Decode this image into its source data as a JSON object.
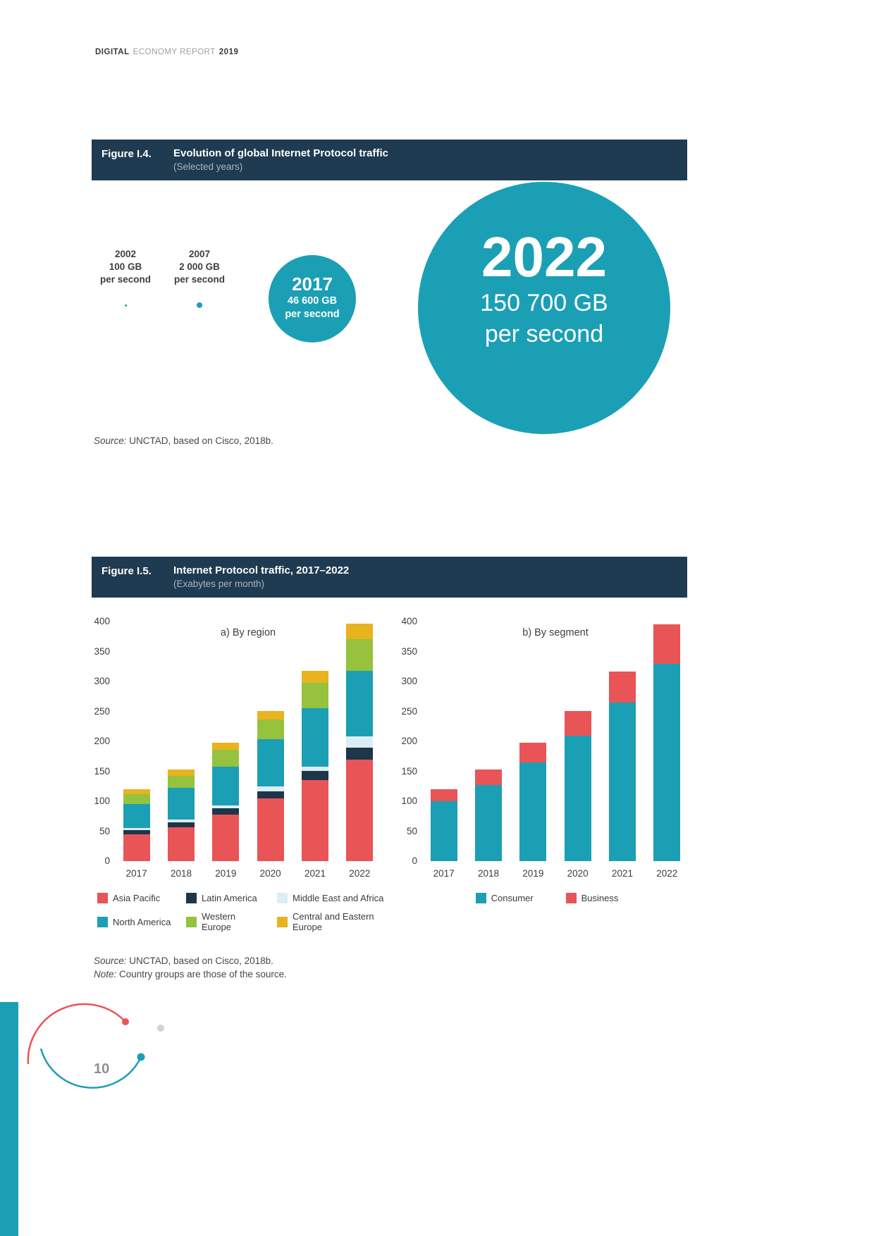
{
  "report_header": {
    "bold_left": "DIGITAL",
    "muted": "ECONOMY REPORT",
    "bold_right": "2019"
  },
  "page_number": "10",
  "colors": {
    "navy": "#1f3b51",
    "teal": "#1b9fb5",
    "red": "#e95457",
    "green": "#96c23d",
    "yellow": "#e9b320",
    "light_blue": "#ddedf5"
  },
  "figure4": {
    "label": "Figure I.4.",
    "title": "Evolution of global Internet Protocol traffic",
    "subtitle": "(Selected years)",
    "milestones": [
      {
        "year": "2002",
        "value": "100 GB",
        "unit": "per second"
      },
      {
        "year": "2007",
        "value": "2 000 GB",
        "unit": "per second"
      },
      {
        "year": "2017",
        "value": "46 600 GB",
        "unit": "per second"
      },
      {
        "year": "2022",
        "value": "150 700 GB",
        "unit": "per second"
      }
    ],
    "source_label": "Source:",
    "source_text": " UNCTAD, based on Cisco, 2018b."
  },
  "figure5": {
    "label": "Figure I.5.",
    "title": "Internet Protocol traffic, 2017–2022",
    "subtitle": "(Exabytes per month)",
    "source_label": "Source:",
    "source_text": " UNCTAD, based on Cisco, 2018b.",
    "note_label": "Note:",
    "note_text": " Country groups are those of the source."
  },
  "chart_data": [
    {
      "type": "bar",
      "stacked": true,
      "title": "a) By region",
      "categories": [
        "2017",
        "2018",
        "2019",
        "2020",
        "2021",
        "2022"
      ],
      "series": [
        {
          "name": "Asia Pacific",
          "color": "#e95457",
          "values": [
            45,
            57,
            78,
            105,
            135,
            170
          ]
        },
        {
          "name": "Latin America",
          "color": "#1d3649",
          "values": [
            7,
            8,
            10,
            12,
            15,
            20
          ]
        },
        {
          "name": "Middle East and Africa",
          "color": "#ddedf5",
          "values": [
            3,
            4,
            5,
            8,
            8,
            18
          ]
        },
        {
          "name": "North America",
          "color": "#1b9fb5",
          "values": [
            40,
            53,
            65,
            78,
            97,
            110
          ]
        },
        {
          "name": "Western Europe",
          "color": "#96c23d",
          "values": [
            17,
            20,
            28,
            33,
            42,
            53
          ]
        },
        {
          "name": "Central and Eastern Europe",
          "color": "#e9b320",
          "values": [
            8,
            11,
            12,
            15,
            20,
            25
          ]
        }
      ],
      "ylim": [
        0,
        400
      ],
      "yticks": [
        0,
        50,
        100,
        150,
        200,
        250,
        300,
        350,
        400
      ],
      "grid": false,
      "legend_position": "bottom",
      "legend_layout": "grid"
    },
    {
      "type": "bar",
      "stacked": true,
      "title": "b) By segment",
      "categories": [
        "2017",
        "2018",
        "2019",
        "2020",
        "2021",
        "2022"
      ],
      "series": [
        {
          "name": "Consumer",
          "color": "#1b9fb5",
          "values": [
            100,
            127,
            165,
            210,
            265,
            330
          ]
        },
        {
          "name": "Business",
          "color": "#e95457",
          "values": [
            20,
            26,
            33,
            41,
            52,
            65
          ]
        }
      ],
      "ylim": [
        0,
        400
      ],
      "yticks": [
        0,
        50,
        100,
        150,
        200,
        250,
        300,
        350,
        400
      ],
      "grid": false,
      "legend_position": "bottom",
      "legend_layout": "inline"
    }
  ]
}
